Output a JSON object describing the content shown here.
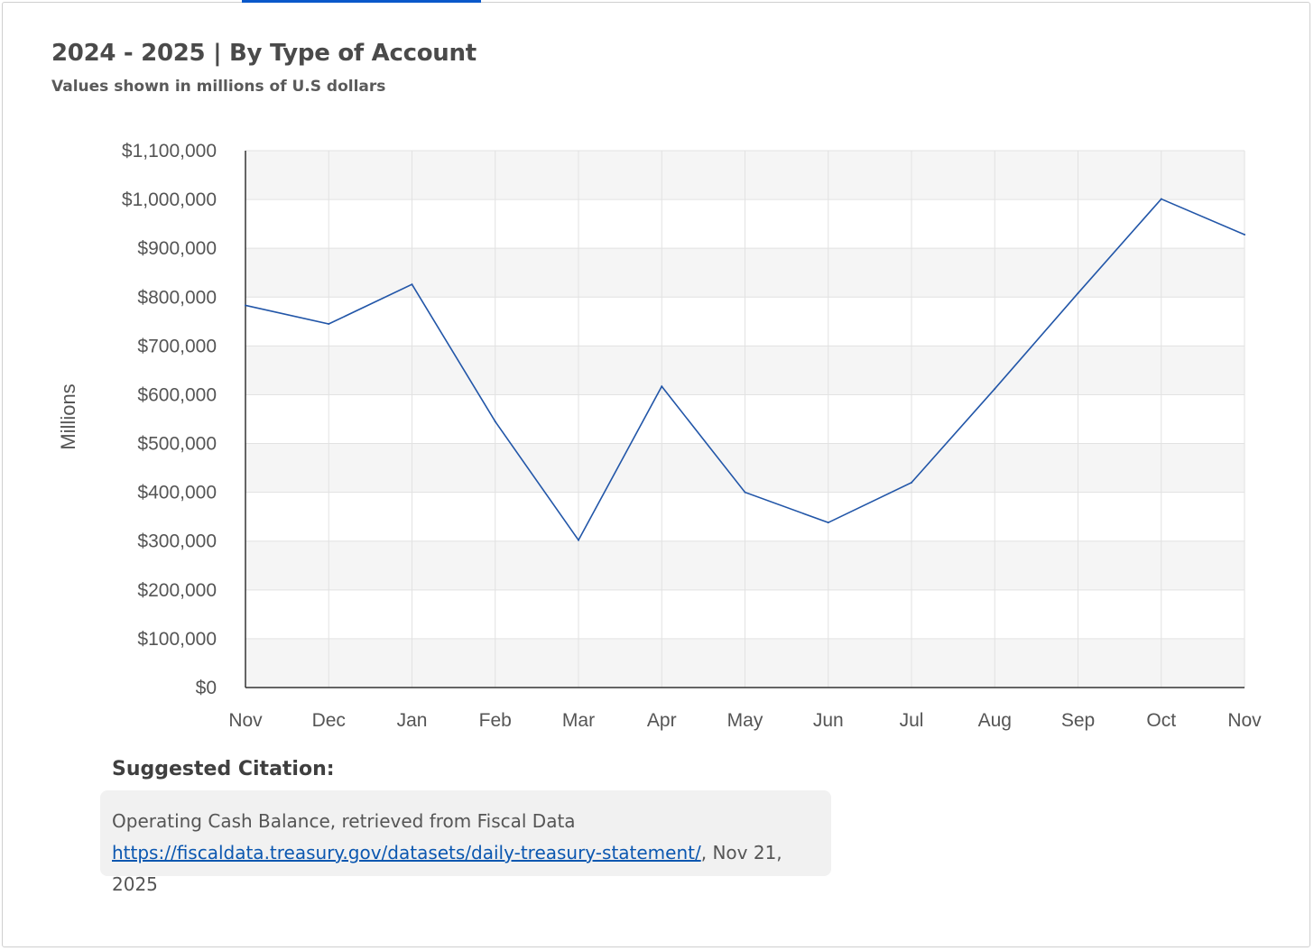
{
  "chart_data": {
    "type": "line",
    "title": "2024 - 2025 | By Type of Account",
    "subtitle": "Values shown in millions of U.S dollars",
    "ylabel": "Millions",
    "xlabel": "",
    "categories": [
      "Nov",
      "Dec",
      "Jan",
      "Feb",
      "Mar",
      "Apr",
      "May",
      "Jun",
      "Jul",
      "Aug",
      "Sep",
      "Oct",
      "Nov"
    ],
    "series": [
      {
        "values": [
          783000,
          745000,
          826000,
          545000,
          302000,
          617000,
          400000,
          338000,
          420000,
          612000,
          808000,
          1001000,
          928000
        ]
      }
    ],
    "ylim": [
      0,
      1100000
    ],
    "yticks": [
      0,
      100000,
      200000,
      300000,
      400000,
      500000,
      600000,
      700000,
      800000,
      900000,
      1000000,
      1100000
    ],
    "ytick_labels": [
      "$0",
      "$100,000",
      "$200,000",
      "$300,000",
      "$400,000",
      "$500,000",
      "$600,000",
      "$700,000",
      "$800,000",
      "$900,000",
      "$1,000,000",
      "$1,100,000"
    ],
    "grid": true,
    "line_color": "#2256a8",
    "band_color": "#f5f5f5"
  },
  "citation": {
    "heading": "Suggested Citation:",
    "text": "Operating Cash Balance, retrieved from Fiscal Data",
    "link": "https://fiscaldata.treasury.gov/datasets/daily-treasury-statement/",
    "suffix": ", Nov 21, 2025"
  }
}
